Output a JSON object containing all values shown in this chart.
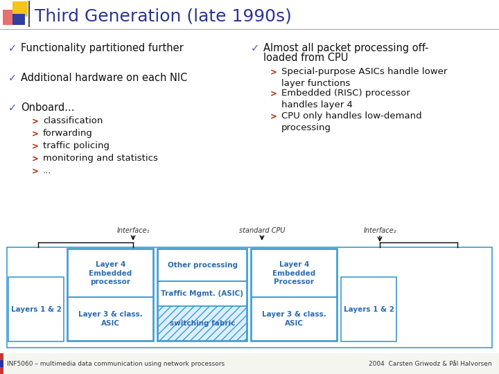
{
  "title": "Third Generation (late 1990s)",
  "title_color": "#2B3590",
  "background_color": "#FFFFFF",
  "left_bullets": [
    "Functionality partitioned further",
    "Additional hardware on each NIC",
    "Onboard..."
  ],
  "sub_bullets": [
    "classification",
    "forwarding",
    "traffic policing",
    "monitoring and statistics",
    "..."
  ],
  "right_bullet_main_line1": "Almost all packet processing off-",
  "right_bullet_main_line2": "loaded from CPU",
  "right_sub_bullets": [
    "Special-purpose ASICs handle lower\nlayer functions",
    "Embedded (RISC) processor\nhandles layer 4",
    "CPU only handles low-demand\nprocessing"
  ],
  "footer_left": "INF5060 – multimedia data communication using network processors",
  "footer_right": "2004  Carsten Griwodz & Pål Halvorsen",
  "box_stroke": "#3B9BD2",
  "box_text_color": "#2B6CB0",
  "diagram_labels": {
    "interface1": "Interface₁",
    "standard_cpu": "standard CPU",
    "interface2": "Interface₂",
    "layer4_left": "Layer 4\nEmbedded\nprocessor",
    "layer3_left": "Layer 3 & class.\nASIC",
    "layers12_left": "Layers 1 & 2",
    "other_proc": "Other processing",
    "traffic": "Traffic Mgmt. (ASIC)",
    "switching": "switching fabric",
    "layer4_right": "Layer 4\nEmbedded\nProcessor",
    "layer3_right": "Layer 3 & class.\nASIC",
    "layers12_right": "Layers 1 & 2"
  },
  "logo_yellow": "#F5C518",
  "logo_red": "#E87070",
  "logo_blue": "#3040A0",
  "check_color": "#5555AA",
  "arrow_color": "#AA2200",
  "body_text_color": "#111111",
  "footer_bg": "#F8F8F8",
  "footer_bar_red": "#CC3333",
  "footer_bar_blue": "#2233AA"
}
